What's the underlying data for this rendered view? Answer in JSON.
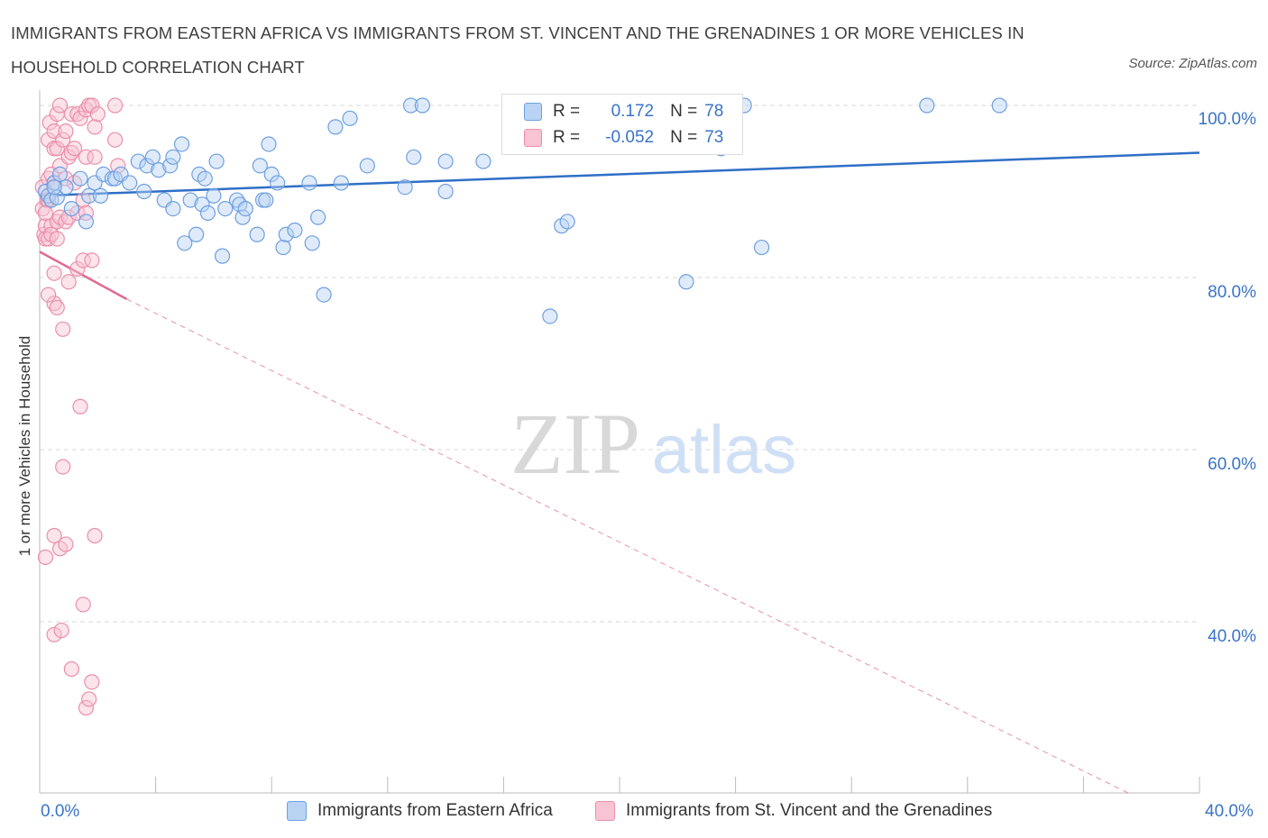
{
  "title": "IMMIGRANTS FROM EASTERN AFRICA VS IMMIGRANTS FROM ST. VINCENT AND THE GRENADINES 1 OR MORE VEHICLES IN HOUSEHOLD CORRELATION CHART",
  "source": "Source: ZipAtlas.com",
  "watermark": {
    "zip": "ZIP",
    "atlas": "atlas"
  },
  "legend": {
    "r_label": "R =",
    "n_label": "N =",
    "blue": {
      "r": "0.172",
      "n": "78"
    },
    "pink": {
      "r": "-0.052",
      "n": "73"
    }
  },
  "colors": {
    "blue_fill": "#b9d3f4",
    "blue_stroke": "#6f9fe0",
    "blue_line": "#2f6fc6",
    "pink_fill": "#f8c3d3",
    "pink_stroke": "#ea8fac",
    "pink_line": "#e06b94",
    "tick_text": "#3a74c8",
    "grid": "#d9d9d9"
  },
  "chart_data": {
    "type": "scatter",
    "title": "IMMIGRANTS FROM EASTERN AFRICA VS IMMIGRANTS FROM ST. VINCENT AND THE GRENADINES 1 OR MORE VEHICLES IN HOUSEHOLD CORRELATION CHART",
    "xlabel": "",
    "ylabel": "1 or more Vehicles in Household",
    "xlim": [
      0,
      40
    ],
    "ylim": [
      20,
      102
    ],
    "x_tick_labels": [
      "0.0%",
      "40.0%"
    ],
    "y_ticks": [
      {
        "value": 100,
        "label": "100.0%"
      },
      {
        "value": 80,
        "label": "80.0%"
      },
      {
        "value": 60,
        "label": "60.0%"
      },
      {
        "value": 40,
        "label": "40.0%"
      }
    ],
    "grid": true,
    "legend_position": "bottom",
    "series": [
      {
        "name": "Immigrants from Eastern Africa",
        "color": "blue",
        "r": 0.172,
        "n": 78,
        "trend": {
          "x": [
            0,
            40
          ],
          "y": [
            89.5,
            94.5
          ]
        },
        "points": [
          [
            0.2,
            90
          ],
          [
            0.3,
            89.5
          ],
          [
            0.4,
            89
          ],
          [
            0.5,
            91
          ],
          [
            0.6,
            89.3
          ],
          [
            0.7,
            92
          ],
          [
            0.9,
            90.5
          ],
          [
            1.1,
            88
          ],
          [
            1.4,
            91.5
          ],
          [
            1.7,
            89.5
          ],
          [
            1.9,
            91
          ],
          [
            2.2,
            92
          ],
          [
            2.5,
            91.5
          ],
          [
            2.6,
            91.5
          ],
          [
            2.8,
            92
          ],
          [
            3.1,
            91
          ],
          [
            3.4,
            93.5
          ],
          [
            3.7,
            93
          ],
          [
            3.9,
            94
          ],
          [
            3.6,
            90
          ],
          [
            4.1,
            92.5
          ],
          [
            4.3,
            89
          ],
          [
            4.5,
            93
          ],
          [
            4.6,
            94
          ],
          [
            4.6,
            88
          ],
          [
            4.9,
            95.5
          ],
          [
            5.0,
            84
          ],
          [
            5.2,
            89
          ],
          [
            5.4,
            85
          ],
          [
            5.5,
            92
          ],
          [
            5.6,
            88.5
          ],
          [
            5.8,
            87.5
          ],
          [
            5.7,
            91.5
          ],
          [
            6.0,
            89.5
          ],
          [
            6.1,
            93.5
          ],
          [
            6.3,
            82.5
          ],
          [
            6.4,
            88
          ],
          [
            6.8,
            89
          ],
          [
            6.9,
            88.5
          ],
          [
            7.0,
            87
          ],
          [
            7.1,
            88
          ],
          [
            7.5,
            85
          ],
          [
            7.6,
            93
          ],
          [
            7.7,
            89
          ],
          [
            7.8,
            89
          ],
          [
            7.9,
            95.5
          ],
          [
            8.0,
            92
          ],
          [
            8.2,
            91
          ],
          [
            8.4,
            83.5
          ],
          [
            8.5,
            85
          ],
          [
            8.8,
            85.5
          ],
          [
            9.3,
            91
          ],
          [
            9.4,
            84
          ],
          [
            9.6,
            87
          ],
          [
            9.8,
            78
          ],
          [
            10.2,
            97.5
          ],
          [
            10.4,
            91
          ],
          [
            10.7,
            98.5
          ],
          [
            11.3,
            93
          ],
          [
            12.6,
            90.5
          ],
          [
            12.8,
            100
          ],
          [
            12.9,
            94
          ],
          [
            13.2,
            100
          ],
          [
            14.0,
            93.5
          ],
          [
            14.0,
            90
          ],
          [
            15.3,
            93.5
          ],
          [
            17.6,
            75.5
          ],
          [
            18.0,
            86
          ],
          [
            18.2,
            86.5
          ],
          [
            22.3,
            79.5
          ],
          [
            23.5,
            95
          ],
          [
            24.3,
            100
          ],
          [
            24.9,
            83.5
          ],
          [
            30.6,
            100
          ],
          [
            33.1,
            100
          ],
          [
            0.5,
            90.5
          ],
          [
            1.6,
            86.5
          ],
          [
            2.1,
            89.5
          ]
        ]
      },
      {
        "name": "Immigrants from St. Vincent and the Grenadines",
        "color": "pink",
        "r": -0.052,
        "n": 73,
        "trend": {
          "x": [
            0,
            3
          ],
          "y": [
            83,
            77.5
          ]
        },
        "trend_extended": {
          "x": [
            3,
            37.6
          ],
          "y": [
            77.5,
            20
          ]
        },
        "points": [
          [
            0.1,
            90.5
          ],
          [
            0.1,
            88
          ],
          [
            0.15,
            85
          ],
          [
            0.2,
            86
          ],
          [
            0.2,
            84.5
          ],
          [
            0.25,
            89
          ],
          [
            0.3,
            91.5
          ],
          [
            0.3,
            89
          ],
          [
            0.3,
            96
          ],
          [
            0.3,
            84.5
          ],
          [
            0.35,
            98
          ],
          [
            0.4,
            92
          ],
          [
            0.4,
            86
          ],
          [
            0.4,
            85
          ],
          [
            0.5,
            97
          ],
          [
            0.5,
            95
          ],
          [
            0.5,
            91
          ],
          [
            0.5,
            80.5
          ],
          [
            0.5,
            77
          ],
          [
            0.5,
            50
          ],
          [
            0.5,
            38.5
          ],
          [
            0.6,
            99
          ],
          [
            0.6,
            95
          ],
          [
            0.6,
            86.5
          ],
          [
            0.6,
            84.5
          ],
          [
            0.6,
            76.5
          ],
          [
            0.7,
            100
          ],
          [
            0.7,
            93
          ],
          [
            0.7,
            87
          ],
          [
            0.7,
            48.5
          ],
          [
            0.75,
            39
          ],
          [
            0.8,
            96
          ],
          [
            0.8,
            74
          ],
          [
            0.8,
            58
          ],
          [
            0.9,
            97
          ],
          [
            0.9,
            91.5
          ],
          [
            0.9,
            86.5
          ],
          [
            0.9,
            49
          ],
          [
            1.0,
            94
          ],
          [
            1.0,
            87
          ],
          [
            1.0,
            79.5
          ],
          [
            1.1,
            99
          ],
          [
            1.1,
            94.5
          ],
          [
            1.1,
            34.5
          ],
          [
            1.2,
            95
          ],
          [
            1.2,
            91
          ],
          [
            1.3,
            87.5
          ],
          [
            1.3,
            99
          ],
          [
            1.3,
            81
          ],
          [
            1.4,
            98.5
          ],
          [
            1.4,
            65
          ],
          [
            1.5,
            89
          ],
          [
            1.5,
            82
          ],
          [
            1.5,
            42
          ],
          [
            1.6,
            99.5
          ],
          [
            1.6,
            94
          ],
          [
            1.6,
            87.5
          ],
          [
            1.6,
            30
          ],
          [
            1.7,
            100
          ],
          [
            1.7,
            31
          ],
          [
            1.8,
            100
          ],
          [
            1.8,
            82
          ],
          [
            1.8,
            33
          ],
          [
            1.9,
            97.5
          ],
          [
            1.9,
            94
          ],
          [
            1.9,
            50
          ],
          [
            2.0,
            99
          ],
          [
            2.6,
            100
          ],
          [
            2.6,
            96
          ],
          [
            2.7,
            93
          ],
          [
            0.2,
            87.5
          ],
          [
            0.3,
            78
          ],
          [
            0.2,
            47.5
          ]
        ]
      }
    ]
  }
}
